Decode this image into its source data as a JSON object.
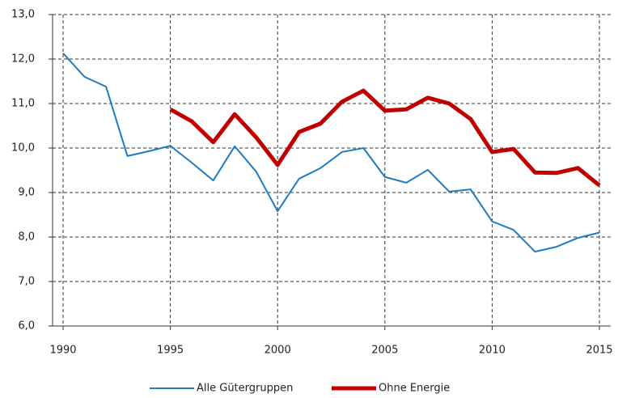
{
  "chart_data": {
    "type": "line",
    "x": [
      1990,
      1991,
      1992,
      1993,
      1994,
      1995,
      1996,
      1997,
      1998,
      1999,
      2000,
      2001,
      2002,
      2003,
      2004,
      2005,
      2006,
      2007,
      2008,
      2009,
      2010,
      2011,
      2012,
      2013,
      2014,
      2015
    ],
    "series": [
      {
        "name": "Alle Gütergruppen",
        "color": "#1f7bc1",
        "width": 2,
        "values": [
          12.13,
          11.6,
          11.38,
          9.82,
          9.93,
          10.05,
          9.67,
          9.27,
          10.04,
          9.47,
          8.58,
          9.31,
          9.55,
          9.91,
          10.0,
          9.35,
          9.22,
          9.51,
          9.02,
          9.07,
          8.35,
          8.16,
          7.67,
          7.78,
          7.98,
          8.1
        ]
      },
      {
        "name": "Ohne Energie",
        "color": "#c00000",
        "width": 5,
        "values": [
          null,
          null,
          null,
          null,
          null,
          10.87,
          10.6,
          10.13,
          10.76,
          10.24,
          9.62,
          10.36,
          10.55,
          11.04,
          11.29,
          10.84,
          10.87,
          11.13,
          11.0,
          10.65,
          9.91,
          9.98,
          9.45,
          9.44,
          9.55,
          9.16
        ]
      }
    ],
    "xlim": [
      1990,
      2015
    ],
    "xticks": [
      1990,
      1995,
      2000,
      2005,
      2010,
      2015
    ],
    "ylim": [
      6,
      13
    ],
    "yticks": [
      {
        "value": 6,
        "label": "6,0"
      },
      {
        "value": 7,
        "label": "7,0"
      },
      {
        "value": 8,
        "label": "8,0"
      },
      {
        "value": 9,
        "label": "9,0"
      },
      {
        "value": 10,
        "label": "10,0"
      },
      {
        "value": 11,
        "label": "11,0"
      },
      {
        "value": 12,
        "label": "12,0"
      },
      {
        "value": 13,
        "label": "13,0"
      }
    ],
    "grid": true,
    "legend": "bottom"
  }
}
